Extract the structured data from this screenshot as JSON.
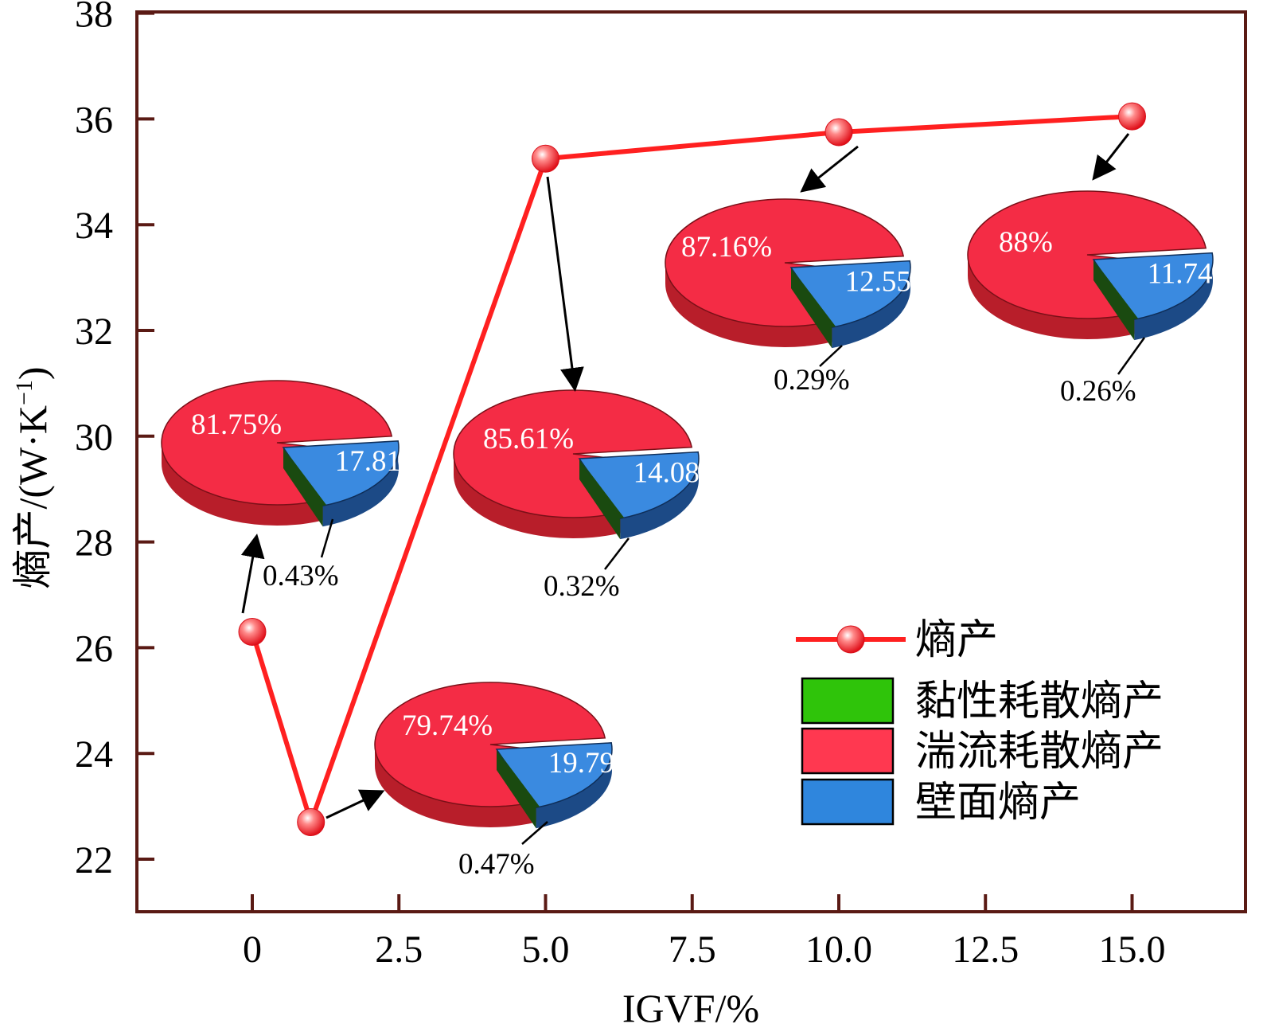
{
  "chart_data": {
    "type": "line",
    "title": "",
    "xlabel": "IGVF/%",
    "ylabel": "熵产/(W·K",
    "ylabel_sup": "−1",
    "ylabel_close": ")",
    "xlim": [
      -2,
      17
    ],
    "ylim": [
      21,
      38
    ],
    "xticks": [
      0,
      2.5,
      5.0,
      7.5,
      10.0,
      12.5,
      15.0
    ],
    "xtick_labels": [
      "0",
      "2.5",
      "5.0",
      "7.5",
      "10.0",
      "12.5",
      "15.0"
    ],
    "yticks": [
      22,
      24,
      26,
      28,
      30,
      32,
      34,
      36,
      38
    ],
    "ytick_labels": [
      "22",
      "24",
      "26",
      "28",
      "30",
      "32",
      "34",
      "36",
      "38"
    ],
    "series": [
      {
        "name": "熵产",
        "x": [
          0,
          1,
          5,
          10,
          15
        ],
        "y": [
          26.3,
          22.7,
          35.25,
          35.75,
          36.05
        ]
      }
    ],
    "pies": [
      {
        "igvf": 0,
        "turbulent": "81.75%",
        "wall": "17.81%",
        "viscous": "0.43%"
      },
      {
        "igvf": 1,
        "turbulent": "79.74%",
        "wall": "19.79%",
        "viscous": "0.47%"
      },
      {
        "igvf": 5,
        "turbulent": "85.61%",
        "wall": "14.08%",
        "viscous": "0.32%"
      },
      {
        "igvf": 10,
        "turbulent": "87.16%",
        "wall": "12.55%",
        "viscous": "0.29%"
      },
      {
        "igvf": 15,
        "turbulent": "88%",
        "wall": "11.74%",
        "viscous": "0.26%"
      }
    ],
    "legend": [
      {
        "label": "熵产",
        "kind": "line",
        "color": "#ff2020"
      },
      {
        "label": "黏性耗散熵产",
        "kind": "box",
        "color": "#2fc40a"
      },
      {
        "label": "湍流耗散熵产",
        "kind": "box",
        "color": "#ff3850"
      },
      {
        "label": "壁面熵产",
        "kind": "box",
        "color": "#2f86dd"
      }
    ],
    "legend_position": "bottom-right",
    "grid": false
  },
  "colors": {
    "line": "#ff2020",
    "turbulent": "#f42c45",
    "turbulent_side": "#b81e2a",
    "wall": "#3a8ae0",
    "wall_side": "#1c4a86",
    "viscous": "#1a4a10",
    "viscous_side": "#0c2a08"
  }
}
